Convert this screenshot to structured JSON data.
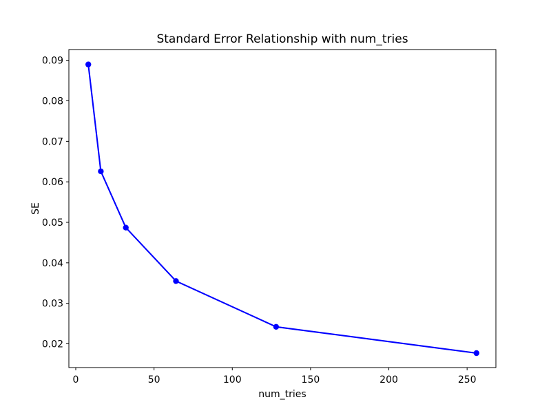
{
  "figure": {
    "title": "Standard Error Relationship with num_tries",
    "xlabel": "num_tries",
    "ylabel": "SE"
  },
  "chart_data": {
    "type": "line",
    "title": "Standard Error Relationship with num_tries",
    "xlabel": "num_tries",
    "ylabel": "SE",
    "x": [
      8,
      16,
      32,
      64,
      128,
      256
    ],
    "y": [
      0.089,
      0.0626,
      0.0487,
      0.0355,
      0.0242,
      0.0177
    ],
    "series": [
      {
        "name": "SE",
        "x": [
          8,
          16,
          32,
          64,
          128,
          256
        ],
        "values": [
          0.089,
          0.0626,
          0.0487,
          0.0355,
          0.0242,
          0.0177
        ]
      }
    ],
    "line_color": "#0000ff",
    "marker": "circle",
    "marker_color": "#0000ff",
    "xticks": [
      0,
      50,
      100,
      150,
      200,
      250
    ],
    "xtick_labels": [
      "0",
      "50",
      "100",
      "150",
      "200",
      "250"
    ],
    "yticks": [
      0.02,
      0.03,
      0.04,
      0.05,
      0.06,
      0.07,
      0.08,
      0.09
    ],
    "ytick_labels": [
      "0.02",
      "0.03",
      "0.04",
      "0.05",
      "0.06",
      "0.07",
      "0.08",
      "0.09"
    ],
    "xlim": [
      -4.4,
      268.4
    ],
    "ylim": [
      0.014135,
      0.092665
    ],
    "grid": false,
    "legend": null,
    "spine_color": "#000000",
    "background_color": "#ffffff"
  }
}
